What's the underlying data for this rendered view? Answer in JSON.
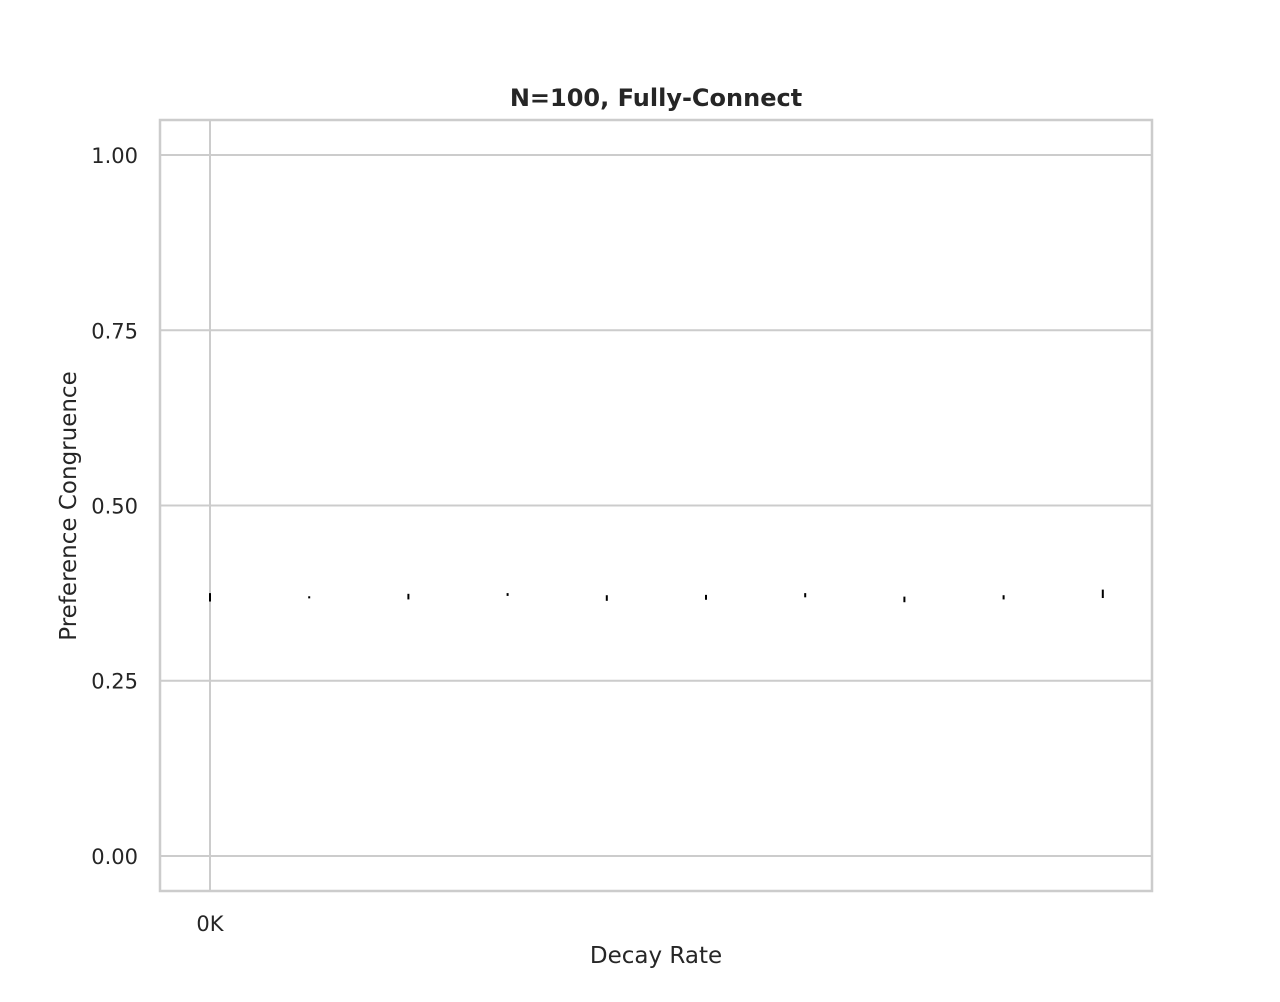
{
  "chart_data": {
    "type": "scatter",
    "title": "N=100, Fully-Connect",
    "xlabel": "Decay Rate",
    "ylabel": "Preference Congruence",
    "x_tick_labels": [
      "0K"
    ],
    "y_ticks": [
      0.0,
      0.25,
      0.5,
      0.75,
      1.0
    ],
    "y_tick_labels": [
      "0.00",
      "0.25",
      "0.50",
      "0.75",
      "1.00"
    ],
    "ylim": [
      -0.05,
      1.05
    ],
    "grid": true,
    "legend": "none",
    "colors": {
      "grid": "#cccccc",
      "spine": "#cccccc",
      "marks": "#000000"
    },
    "points": [
      {
        "x": 0,
        "y": 0.369,
        "err": 0.006
      },
      {
        "x": 1,
        "y": 0.369,
        "err": 0.0015
      },
      {
        "x": 2,
        "y": 0.37,
        "err": 0.004
      },
      {
        "x": 3,
        "y": 0.373,
        "err": 0.002
      },
      {
        "x": 4,
        "y": 0.368,
        "err": 0.004
      },
      {
        "x": 5,
        "y": 0.369,
        "err": 0.0035
      },
      {
        "x": 6,
        "y": 0.372,
        "err": 0.003
      },
      {
        "x": 7,
        "y": 0.366,
        "err": 0.004
      },
      {
        "x": 8,
        "y": 0.369,
        "err": 0.003
      },
      {
        "x": 9,
        "y": 0.374,
        "err": 0.006
      }
    ]
  }
}
